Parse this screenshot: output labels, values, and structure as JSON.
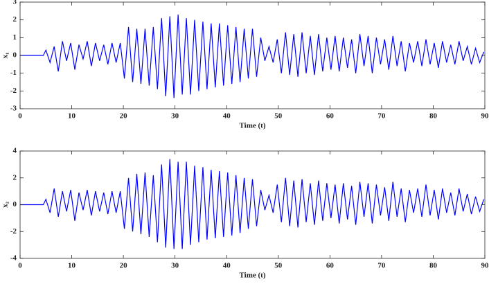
{
  "chart_data": [
    {
      "type": "line",
      "xlabel": "Time (t)",
      "ylabel": "x₁",
      "xlim": [
        0,
        90
      ],
      "xticks": [
        0,
        10,
        20,
        30,
        40,
        50,
        60,
        70,
        80,
        90
      ],
      "ylim": [
        -3,
        3
      ],
      "yticks": [
        -3,
        -2,
        -1,
        0,
        1,
        2,
        3
      ],
      "x": [
        0,
        4.5,
        5,
        5.8,
        6.6,
        7.4,
        8.2,
        9,
        9.8,
        10.6,
        11.4,
        12.2,
        13,
        13.8,
        14.6,
        15.4,
        16.2,
        17,
        17.8,
        18.6,
        19.4,
        20.2,
        21,
        21.8,
        22.6,
        23.4,
        24.2,
        25,
        25.8,
        26.6,
        27.4,
        28.2,
        29,
        29.8,
        30.6,
        31.4,
        32.2,
        33,
        33.8,
        34.6,
        35.4,
        36.2,
        37,
        37.8,
        38.6,
        39.4,
        40.2,
        41,
        41.8,
        42.6,
        43.4,
        44.2,
        45,
        45.8,
        46.6,
        47.4,
        48.2,
        49,
        49.8,
        50.6,
        51.4,
        52.2,
        53,
        53.8,
        54.6,
        55.4,
        56.2,
        57,
        57.8,
        58.6,
        59.4,
        60.2,
        61,
        61.8,
        62.6,
        63.4,
        64.2,
        65,
        65.8,
        66.6,
        67.4,
        68.2,
        69,
        69.8,
        70.6,
        71.4,
        72.2,
        73,
        73.8,
        74.6,
        75.4,
        76.2,
        77,
        77.8,
        78.6,
        79.4,
        80.2,
        81,
        81.8,
        82.6,
        83.4,
        84.2,
        85,
        85.8,
        86.6,
        87.4,
        88.2,
        89,
        89.8
      ],
      "series": [
        {
          "color": "#0000ff",
          "values": [
            0,
            0,
            0.3,
            -0.4,
            0.5,
            -0.9,
            0.8,
            -0.3,
            0.7,
            -0.8,
            0.6,
            -0.2,
            0.8,
            -0.6,
            0.7,
            -0.3,
            0.6,
            -0.5,
            0.7,
            -0.4,
            0.7,
            -1.3,
            1.6,
            -1.5,
            1.5,
            -1.6,
            1.5,
            -1.7,
            1.6,
            -1.9,
            2.1,
            -2.3,
            2.2,
            -2.4,
            2.3,
            -2.2,
            2.1,
            -2.2,
            2.0,
            -2.0,
            1.9,
            -1.9,
            1.8,
            -1.8,
            1.8,
            -1.7,
            1.7,
            -1.6,
            1.6,
            -1.5,
            1.5,
            -1.3,
            1.5,
            -1.2,
            1.0,
            -0.3,
            0.5,
            -0.4,
            0.9,
            -1.0,
            1.3,
            -1.1,
            1.2,
            -1.2,
            1.3,
            -1.0,
            1.1,
            -1.1,
            1.2,
            -0.9,
            1.0,
            -0.8,
            1.1,
            -0.9,
            1.0,
            -0.7,
            0.9,
            -1.0,
            1.2,
            -0.6,
            1.1,
            -1.0,
            1.0,
            -0.5,
            0.9,
            -0.8,
            1.1,
            -0.6,
            0.8,
            -0.9,
            0.7,
            -0.4,
            0.8,
            -0.6,
            0.9,
            -0.5,
            0.7,
            -0.7,
            0.8,
            -0.4,
            0.6,
            -0.5,
            0.8,
            -0.3,
            0.5,
            -0.5,
            0.4,
            -0.4,
            0.2
          ]
        }
      ]
    },
    {
      "type": "line",
      "xlabel": "Time (t)",
      "ylabel": "x₂",
      "xlim": [
        0,
        90
      ],
      "xticks": [
        0,
        10,
        20,
        30,
        40,
        50,
        60,
        70,
        80,
        90
      ],
      "ylim": [
        -4,
        4
      ],
      "yticks": [
        -4,
        -2,
        0,
        2,
        4
      ],
      "x": [
        0,
        4.5,
        5,
        5.8,
        6.6,
        7.4,
        8.2,
        9,
        9.8,
        10.6,
        11.4,
        12.2,
        13,
        13.8,
        14.6,
        15.4,
        16.2,
        17,
        17.8,
        18.6,
        19.4,
        20.2,
        21,
        21.8,
        22.6,
        23.4,
        24.2,
        25,
        25.8,
        26.6,
        27.4,
        28.2,
        29,
        29.8,
        30.6,
        31.4,
        32.2,
        33,
        33.8,
        34.6,
        35.4,
        36.2,
        37,
        37.8,
        38.6,
        39.4,
        40.2,
        41,
        41.8,
        42.6,
        43.4,
        44.2,
        45,
        45.8,
        46.6,
        47.4,
        48.2,
        49,
        49.8,
        50.6,
        51.4,
        52.2,
        53,
        53.8,
        54.6,
        55.4,
        56.2,
        57,
        57.8,
        58.6,
        59.4,
        60.2,
        61,
        61.8,
        62.6,
        63.4,
        64.2,
        65,
        65.8,
        66.6,
        67.4,
        68.2,
        69,
        69.8,
        70.6,
        71.4,
        72.2,
        73,
        73.8,
        74.6,
        75.4,
        76.2,
        77,
        77.8,
        78.6,
        79.4,
        80.2,
        81,
        81.8,
        82.6,
        83.4,
        84.2,
        85,
        85.8,
        86.6,
        87.4,
        88.2,
        89,
        89.8
      ],
      "series": [
        {
          "color": "#0000ff",
          "values": [
            0,
            0,
            0.4,
            -0.6,
            1.2,
            -0.9,
            1.0,
            -0.5,
            1.1,
            -1.2,
            0.9,
            -0.4,
            1.1,
            -0.8,
            1.0,
            -0.5,
            0.9,
            -0.7,
            1.0,
            -0.6,
            1.0,
            -1.8,
            2.0,
            -2.0,
            2.3,
            -2.2,
            2.4,
            -2.4,
            2.2,
            -2.8,
            3.0,
            -3.2,
            3.4,
            -3.3,
            3.2,
            -3.3,
            3.2,
            -3.0,
            2.9,
            -2.8,
            2.8,
            -2.6,
            2.6,
            -2.5,
            2.5,
            -2.4,
            2.4,
            -2.3,
            2.2,
            -2.1,
            2.0,
            -1.8,
            1.9,
            -1.6,
            1.1,
            -0.4,
            0.7,
            -0.6,
            1.5,
            -1.3,
            2.0,
            -1.6,
            1.8,
            -1.7,
            1.9,
            -1.3,
            1.6,
            -1.5,
            1.8,
            -1.2,
            1.6,
            -1.0,
            1.5,
            -1.4,
            1.6,
            -1.1,
            1.4,
            -1.5,
            1.7,
            -0.9,
            1.6,
            -1.4,
            1.5,
            -0.8,
            1.3,
            -1.2,
            1.7,
            -0.9,
            1.2,
            -1.3,
            1.1,
            -0.6,
            1.2,
            -0.9,
            1.5,
            -0.8,
            1.1,
            -1.1,
            1.2,
            -0.6,
            0.9,
            -0.8,
            1.2,
            -0.5,
            0.8,
            -0.7,
            0.6,
            -0.5,
            0.4
          ]
        }
      ]
    }
  ]
}
